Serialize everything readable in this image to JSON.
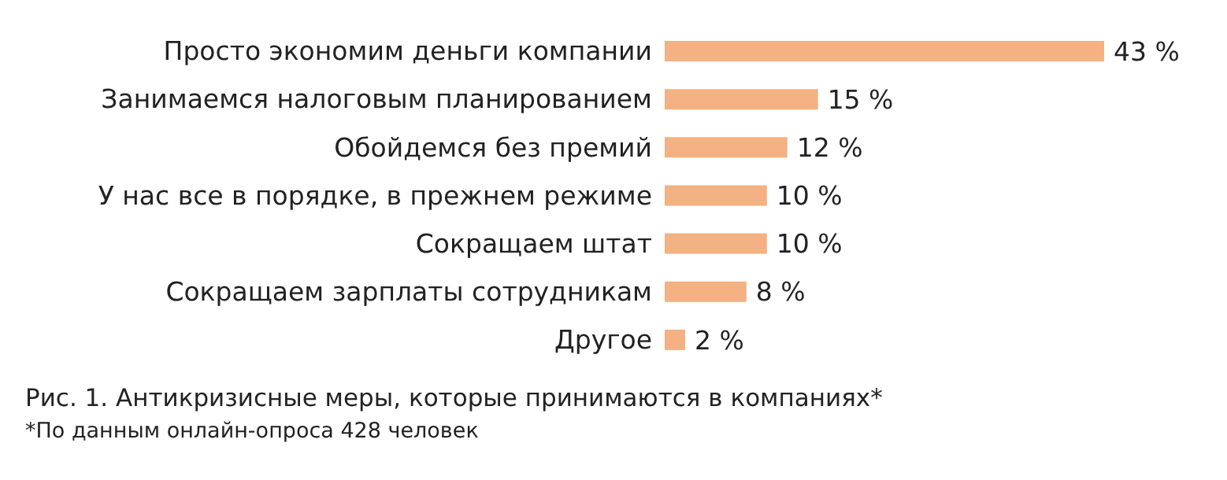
{
  "chart_data": {
    "type": "bar",
    "orientation": "horizontal",
    "title": "Рис. 1. Антикризисные меры, которые принимаются в компаниях*",
    "annotations": [
      "*По данным онлайн-опроса 428 человек"
    ],
    "categories": [
      "Просто экономим деньги компании",
      "Занимаемся налоговым планированием",
      "Обойдемся без премий",
      "У нас все в порядке, в прежнем режиме",
      "Сокращаем штат",
      "Сокращаем зарплаты сотрудникам",
      "Другое"
    ],
    "values": [
      43,
      15,
      12,
      10,
      10,
      8,
      2
    ],
    "value_labels": [
      "43 %",
      "15 %",
      "12 %",
      "10 %",
      "10 %",
      "8 %",
      "2 %"
    ],
    "color": "#f4b183"
  }
}
